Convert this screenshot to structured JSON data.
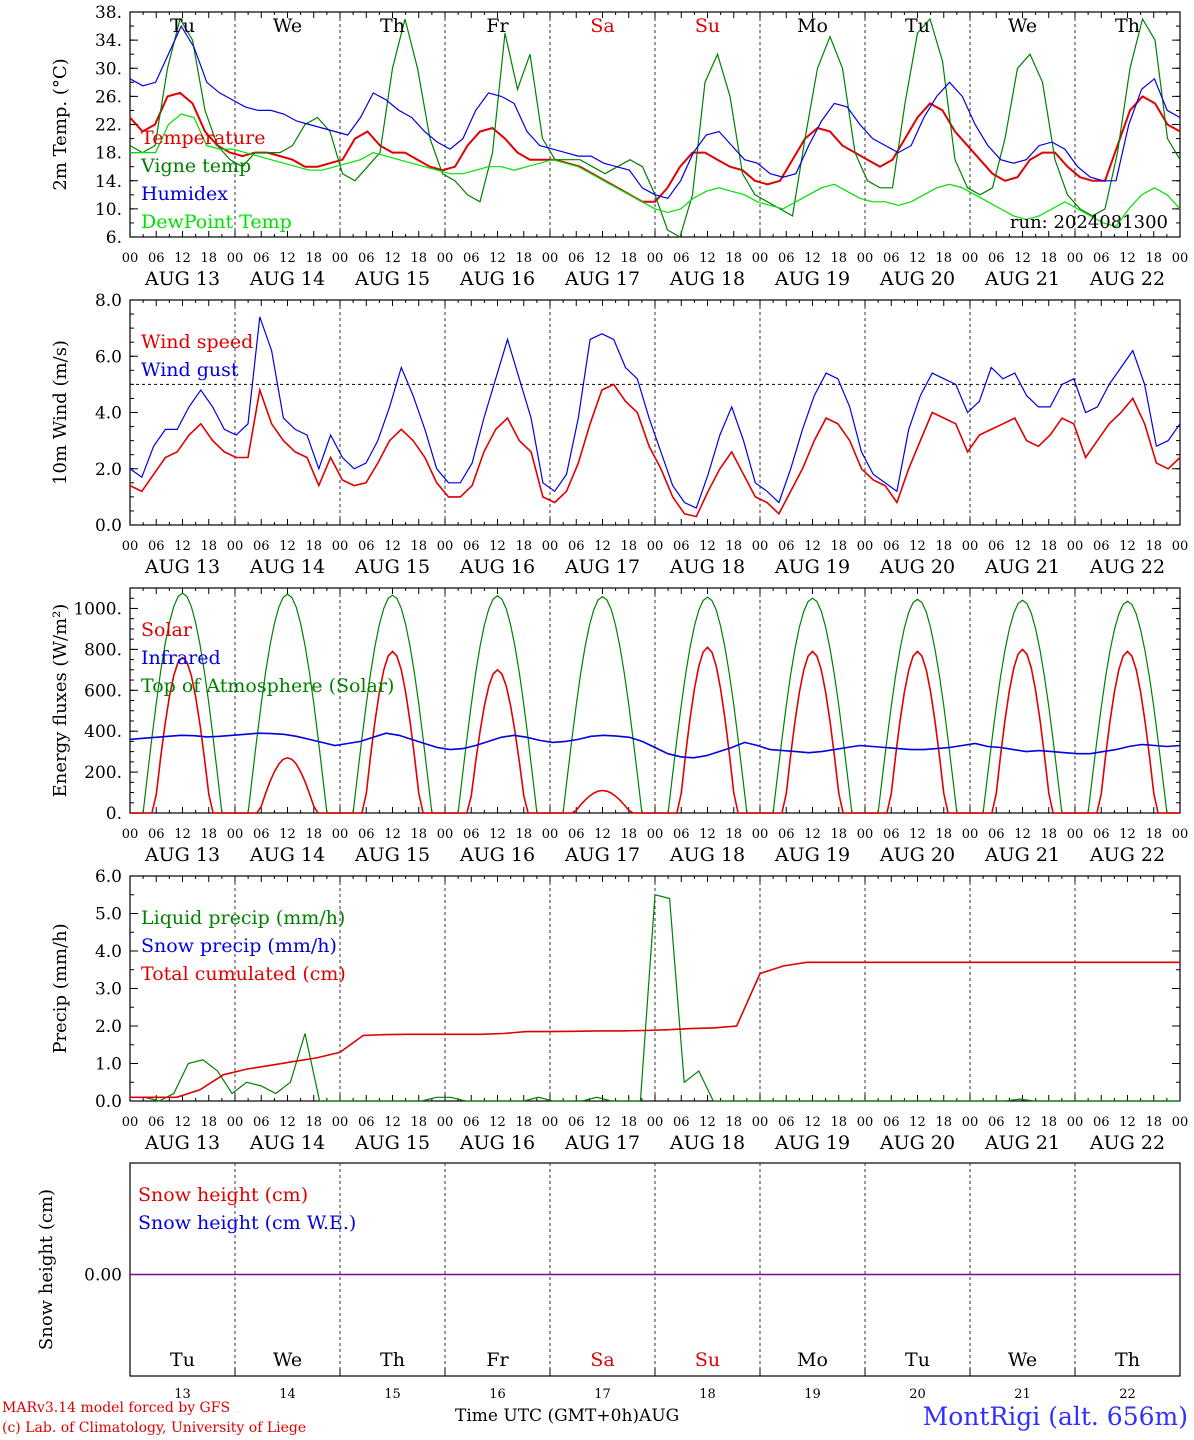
{
  "chart_data": {
    "type": "line",
    "run_label": "run: 2024081300",
    "day_names": [
      "Tu",
      "We",
      "Th",
      "Fr",
      "Sa",
      "Su",
      "Mo",
      "Tu",
      "We",
      "Th"
    ],
    "day_name_colors": [
      "#000000",
      "#000000",
      "#000000",
      "#000000",
      "#e00000",
      "#e00000",
      "#000000",
      "#000000",
      "#000000",
      "#000000"
    ],
    "date_labels": [
      "AUG 13",
      "AUG 14",
      "AUG 15",
      "AUG 16",
      "AUG 17",
      "AUG 18",
      "AUG 19",
      "AUG 20",
      "AUG 21",
      "AUG 22"
    ],
    "day_numbers": [
      "13",
      "14",
      "15",
      "16",
      "17",
      "18",
      "19",
      "20",
      "21",
      "22"
    ],
    "hour_ticks": [
      "00",
      "06",
      "12",
      "18"
    ],
    "final_hour_label": "00",
    "x_title": "Time UTC (GMT+0h)",
    "x_title_month": "AUG",
    "credit_line1": "MARv3.14 model forced by GFS",
    "credit_line2": "(c) Lab. of Climatology, University of Liege",
    "station": "MontRigi (alt. 656m)",
    "panels": [
      {
        "id": "temperature",
        "ylabel": "2m Temp. (°C)",
        "ylim": [
          6,
          38
        ],
        "yticks": [
          "6.",
          "10.",
          "14.",
          "18.",
          "22.",
          "26.",
          "30.",
          "34.",
          "38."
        ],
        "series": [
          {
            "name": "Temperature",
            "color": "#e00000",
            "values": [
              23,
              21,
              22,
              26,
              26.5,
              25,
              21,
              19,
              18,
              17.5,
              18,
              18,
              17.5,
              17,
              16,
              16,
              16.5,
              17,
              20,
              21,
              19,
              18,
              18,
              17,
              16,
              15.5,
              16,
              19,
              21,
              21.5,
              20,
              18,
              17,
              17,
              17,
              16.5,
              16,
              15,
              14,
              13,
              12,
              11,
              11,
              13,
              16,
              18,
              18,
              17,
              16,
              15.5,
              14,
              13.5,
              14,
              17,
              20,
              21.5,
              21,
              19,
              18,
              17,
              16,
              17,
              20,
              23,
              25,
              24,
              21,
              19,
              17,
              15,
              14,
              14.5,
              17,
              18,
              18,
              16,
              14.5,
              14,
              14,
              19,
              24,
              26,
              25,
              22,
              21
            ]
          },
          {
            "name": "Vigne temp",
            "color": "#008000",
            "values": [
              19,
              18,
              19,
              30,
              37,
              34,
              24,
              19,
              17,
              16,
              18,
              18,
              18,
              19,
              22,
              23,
              21,
              15,
              14,
              16,
              18,
              30,
              37,
              30,
              20,
              15,
              14,
              12,
              11,
              18,
              35,
              27,
              32,
              20,
              17,
              17,
              17,
              16,
              15,
              16,
              17,
              16,
              12,
              7,
              6,
              12,
              28,
              32,
              26,
              15,
              12,
              11,
              10,
              9,
              20,
              30,
              34.5,
              30,
              18,
              14,
              13,
              13,
              25,
              35,
              37,
              31,
              17,
              13,
              12,
              13,
              20,
              30,
              32,
              28,
              17,
              12,
              10,
              9,
              10,
              18,
              30,
              37,
              34,
              20,
              17
            ]
          },
          {
            "name": "Humidex",
            "color": "#0000e0",
            "values": [
              28.5,
              27.5,
              28,
              32,
              36,
              33,
              28,
              26.5,
              25.5,
              24.5,
              24,
              24,
              23.5,
              22.5,
              22,
              21.5,
              21,
              20.5,
              23,
              26.5,
              25.5,
              24,
              23,
              21,
              19.5,
              18.5,
              20,
              24,
              26.5,
              26,
              25,
              21,
              19,
              18.5,
              18,
              17.5,
              17.5,
              16.5,
              16,
              15.5,
              13,
              12,
              11.5,
              14,
              18,
              20.5,
              21,
              19,
              17,
              16.5,
              15,
              14.5,
              15,
              19,
              22.5,
              25,
              24.5,
              22,
              20,
              19,
              18,
              19,
              23,
              26,
              28,
              26,
              22,
              19,
              17,
              16.5,
              17,
              19,
              19.5,
              18.5,
              16,
              14.5,
              14,
              14,
              22,
              27,
              28.5,
              24,
              23
            ]
          },
          {
            "name": "DewPoint Temp",
            "color": "#00e000",
            "values": [
              18,
              18,
              18,
              22,
              23.5,
              23,
              19,
              18.5,
              18.5,
              18,
              17.5,
              17,
              16.5,
              16,
              15.5,
              15.5,
              16,
              16.5,
              17,
              18,
              17.5,
              17,
              16.5,
              16,
              15.5,
              15,
              15,
              15.5,
              16,
              16,
              15.5,
              16,
              16.5,
              17,
              16.5,
              16,
              15,
              14,
              13,
              12,
              11,
              10,
              9.5,
              10,
              11.5,
              12.5,
              13,
              12.5,
              12,
              11,
              10.5,
              10,
              11,
              12,
              13,
              13.5,
              12.5,
              11.5,
              11,
              11,
              10.5,
              11,
              12,
              13,
              13.5,
              13,
              12,
              11,
              10,
              9,
              8.5,
              9,
              10,
              11,
              10,
              9,
              8,
              7.5,
              10,
              12,
              13,
              12,
              10
            ]
          }
        ],
        "legend": [
          "Temperature",
          "Vigne temp",
          "Humidex",
          "DewPoint Temp"
        ]
      },
      {
        "id": "wind",
        "ylabel": "10m Wind (m/s)",
        "ylim": [
          0,
          8
        ],
        "yticks": [
          "0.0",
          "2.0",
          "4.0",
          "6.0",
          "8.0"
        ],
        "reference_line": 5,
        "series": [
          {
            "name": "Wind speed",
            "color": "#e00000",
            "values": [
              1.4,
              1.2,
              1.8,
              2.4,
              2.6,
              3.2,
              3.6,
              3.0,
              2.6,
              2.4,
              2.4,
              4.8,
              3.6,
              3.0,
              2.6,
              2.4,
              1.4,
              2.4,
              1.6,
              1.4,
              1.5,
              2.2,
              3.0,
              3.4,
              3.0,
              2.4,
              1.5,
              1.0,
              1.0,
              1.4,
              2.6,
              3.4,
              3.8,
              3.0,
              2.6,
              1.0,
              0.8,
              1.2,
              2.2,
              3.6,
              4.8,
              5.0,
              4.4,
              4.0,
              2.8,
              2.0,
              1.0,
              0.4,
              0.3,
              1.2,
              2.0,
              2.6,
              1.8,
              1.0,
              0.8,
              0.4,
              1.2,
              2.0,
              3.0,
              3.8,
              3.6,
              3.0,
              2.0,
              1.6,
              1.4,
              0.8,
              2.0,
              3.0,
              4.0,
              3.8,
              3.6,
              2.6,
              3.2,
              3.4,
              3.6,
              3.8,
              3.0,
              2.8,
              3.2,
              3.8,
              3.6,
              2.4,
              3.0,
              3.6,
              4.0,
              4.5,
              3.6,
              2.2,
              2.0,
              2.4
            ]
          },
          {
            "name": "Wind gust",
            "color": "#0000e0",
            "values": [
              2.0,
              1.7,
              2.8,
              3.4,
              3.4,
              4.2,
              4.8,
              4.2,
              3.4,
              3.2,
              3.6,
              7.4,
              6.2,
              3.8,
              3.4,
              3.2,
              2.0,
              3.2,
              2.4,
              2.0,
              2.2,
              3.0,
              4.2,
              5.6,
              4.6,
              3.4,
              2.0,
              1.5,
              1.5,
              2.2,
              3.8,
              5.2,
              6.6,
              5.2,
              3.8,
              1.5,
              1.2,
              1.8,
              3.8,
              6.6,
              6.8,
              6.6,
              5.6,
              5.2,
              3.8,
              2.6,
              1.4,
              0.8,
              0.6,
              1.8,
              3.2,
              4.2,
              3.0,
              1.5,
              1.2,
              0.8,
              2.0,
              3.4,
              4.6,
              5.4,
              5.2,
              4.2,
              2.6,
              1.8,
              1.5,
              1.2,
              3.4,
              4.6,
              5.4,
              5.2,
              5.0,
              4.0,
              4.4,
              5.6,
              5.2,
              5.4,
              4.6,
              4.2,
              4.2,
              5.0,
              5.2,
              4.0,
              4.2,
              5.0,
              5.6,
              6.2,
              5.0,
              2.8,
              3.0,
              3.6
            ]
          }
        ],
        "legend": [
          "Wind speed",
          "Wind gust"
        ]
      },
      {
        "id": "energy",
        "ylabel": "Energy fluxes (W/m²)",
        "ylim": [
          0,
          1100
        ],
        "yticks": [
          "0.",
          "200.",
          "400.",
          "600.",
          "800.",
          "1000."
        ],
        "series": [
          {
            "name": "Solar",
            "color": "#e00000",
            "peaks": [
              760,
              270,
              790,
              700,
              110,
              810,
              790,
              790,
              800,
              790
            ]
          },
          {
            "name": "Infrared",
            "color": "#0000e0",
            "values": [
              360,
              365,
              370,
              375,
              380,
              378,
              372,
              375,
              380,
              385,
              390,
              388,
              385,
              375,
              360,
              345,
              330,
              340,
              350,
              370,
              390,
              380,
              360,
              340,
              320,
              310,
              315,
              330,
              350,
              370,
              380,
              370,
              355,
              345,
              350,
              360,
              375,
              380,
              376,
              370,
              350,
              320,
              290,
              275,
              270,
              280,
              300,
              320,
              345,
              330,
              310,
              305,
              300,
              295,
              300,
              310,
              320,
              330,
              325,
              320,
              315,
              310,
              310,
              315,
              320,
              330,
              340,
              325,
              320,
              310,
              300,
              305,
              300,
              295,
              290,
              290,
              300,
              310,
              325,
              335,
              330,
              325,
              330
            ]
          },
          {
            "name": "Top of Atmosphere (Solar)",
            "color": "#008000",
            "peaks": [
              1075,
              1070,
              1065,
              1062,
              1058,
              1055,
              1050,
              1045,
              1040,
              1035
            ]
          }
        ],
        "legend": [
          "Solar",
          "Infrared",
          "Top of Atmosphere (Solar)"
        ]
      },
      {
        "id": "precip",
        "ylabel": "Precip (mm/h)",
        "ylim": [
          0,
          6
        ],
        "yticks": [
          "0.0",
          "1.0",
          "2.0",
          "3.0",
          "4.0",
          "5.0",
          "6.0"
        ],
        "series": [
          {
            "name": "Liquid precip (mm/h)",
            "color": "#008000",
            "values": [
              0.1,
              0.1,
              0,
              0.2,
              1.0,
              1.1,
              0.8,
              0.2,
              0.5,
              0.4,
              0.2,
              0.5,
              1.8,
              0,
              0,
              0,
              0,
              0,
              0,
              0,
              0,
              0.1,
              0.1,
              0,
              0,
              0,
              0,
              0,
              0.1,
              0,
              0,
              0,
              0.1,
              0,
              0,
              0,
              5.5,
              5.4,
              0.5,
              0.8,
              0,
              0,
              0,
              0,
              0,
              0,
              0,
              0,
              0,
              0,
              0,
              0,
              0,
              0,
              0,
              0,
              0,
              0,
              0,
              0,
              0,
              0.05,
              0,
              0,
              0,
              0,
              0,
              0,
              0,
              0,
              0,
              0,
              0
            ]
          },
          {
            "name": "Snow precip (mm/h)",
            "color": "#0000e0",
            "values": []
          },
          {
            "name": "Total cumulated (cm)",
            "color": "#e00000",
            "values": [
              0.1,
              0.1,
              0.1,
              0.3,
              0.7,
              0.85,
              0.95,
              1.05,
              1.15,
              1.3,
              1.75,
              1.77,
              1.78,
              1.78,
              1.78,
              1.78,
              1.8,
              1.85,
              1.85,
              1.86,
              1.87,
              1.87,
              1.88,
              1.9,
              1.93,
              1.95,
              2.0,
              3.4,
              3.6,
              3.7,
              3.7,
              3.7,
              3.7,
              3.7,
              3.7,
              3.7,
              3.7,
              3.7,
              3.7,
              3.7,
              3.7,
              3.7,
              3.7,
              3.7,
              3.7,
              3.7
            ]
          }
        ],
        "legend": [
          "Liquid precip (mm/h)",
          "Snow precip (mm/h)",
          "Total cumulated (cm)"
        ]
      },
      {
        "id": "snow",
        "ylabel": "Snow height (cm)",
        "yticks": [
          "0.00"
        ],
        "series": [
          {
            "name": "Snow height (cm)",
            "color": "#e00000",
            "values": [
              0,
              0
            ]
          },
          {
            "name": "Snow height (cm W.E.)",
            "color": "#0000e0",
            "values": [
              0,
              0
            ]
          }
        ],
        "legend": [
          "Snow height (cm)",
          "Snow height (cm W.E.)"
        ]
      }
    ]
  }
}
